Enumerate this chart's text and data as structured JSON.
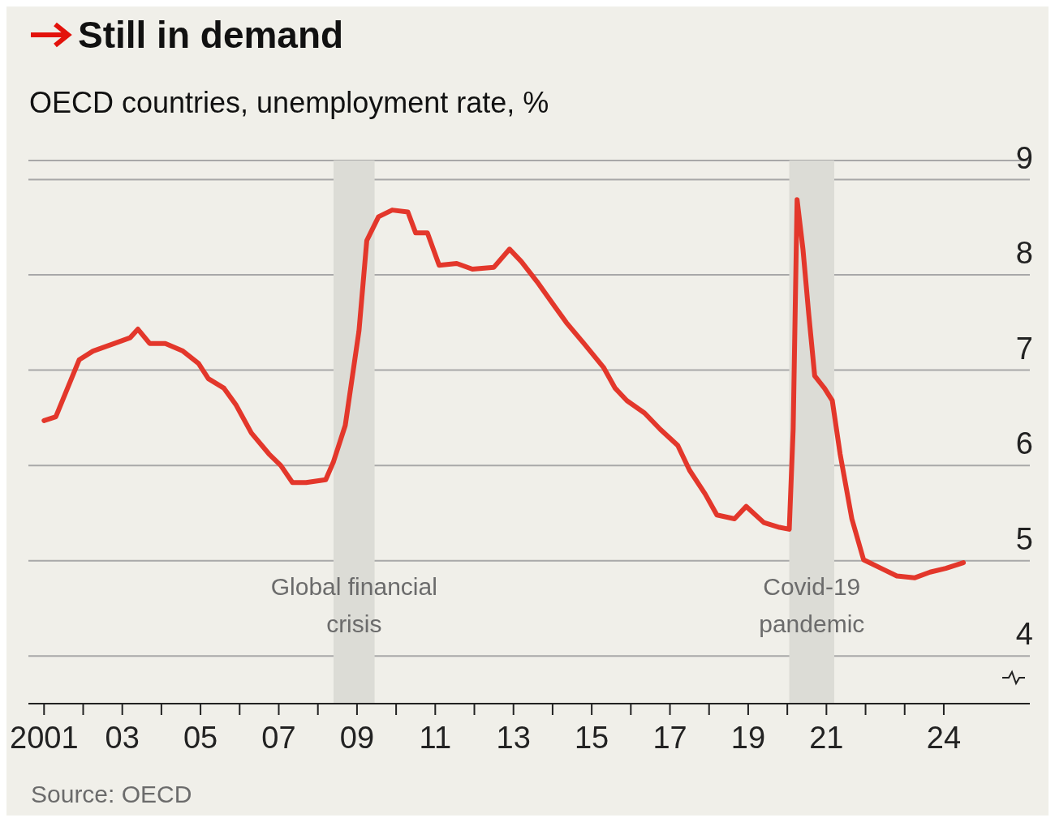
{
  "chart_data": {
    "type": "line",
    "title": "Still in demand",
    "subtitle": "OECD countries, unemployment rate, %",
    "x": [
      2001.0,
      2001.3,
      2001.6,
      2001.9,
      2002.25,
      2002.8,
      2003.2,
      2003.4,
      2003.7,
      2004.1,
      2004.55,
      2004.95,
      2005.2,
      2005.6,
      2005.9,
      2006.3,
      2006.75,
      2007.05,
      2007.35,
      2007.7,
      2008.2,
      2008.4,
      2008.7,
      2009.05,
      2009.25,
      2009.55,
      2009.9,
      2010.3,
      2010.5,
      2010.8,
      2011.1,
      2011.55,
      2011.95,
      2012.5,
      2012.9,
      2013.2,
      2013.6,
      2014.05,
      2014.35,
      2014.8,
      2015.3,
      2015.6,
      2015.9,
      2016.35,
      2016.75,
      2017.2,
      2017.5,
      2017.9,
      2018.2,
      2018.65,
      2018.95,
      2019.4,
      2019.8,
      2020.05,
      2020.15,
      2020.25,
      2020.4,
      2020.55,
      2020.7,
      2020.95,
      2021.15,
      2021.35,
      2021.65,
      2021.95,
      2022.4,
      2022.8,
      2023.25,
      2023.65,
      2024.05,
      2024.5
    ],
    "series": [
      {
        "color": "#e3372b",
        "values": [
          6.47,
          6.51,
          6.81,
          7.11,
          7.2,
          7.28,
          7.34,
          7.43,
          7.28,
          7.28,
          7.2,
          7.07,
          6.91,
          6.81,
          6.64,
          6.34,
          6.12,
          6.0,
          5.82,
          5.82,
          5.85,
          6.04,
          6.42,
          7.41,
          8.36,
          8.61,
          8.68,
          8.66,
          8.44,
          8.44,
          8.1,
          8.12,
          8.06,
          8.08,
          8.27,
          8.14,
          7.93,
          7.67,
          7.5,
          7.28,
          7.03,
          6.81,
          6.68,
          6.55,
          6.38,
          6.21,
          5.95,
          5.7,
          5.48,
          5.44,
          5.57,
          5.4,
          5.35,
          5.33,
          6.38,
          8.79,
          8.27,
          7.58,
          6.94,
          6.81,
          6.68,
          6.12,
          5.44,
          5.01,
          4.92,
          4.84,
          4.82,
          4.88,
          4.92,
          4.98
        ]
      }
    ],
    "xlim": [
      2000.6,
      2026.2
    ],
    "xticks": [
      {
        "value": 2001,
        "label": "2001"
      },
      {
        "value": 2002,
        "label": null
      },
      {
        "value": 2003,
        "label": "03"
      },
      {
        "value": 2004,
        "label": null
      },
      {
        "value": 2005,
        "label": "05"
      },
      {
        "value": 2006,
        "label": null
      },
      {
        "value": 2007,
        "label": "07"
      },
      {
        "value": 2008,
        "label": null
      },
      {
        "value": 2009,
        "label": "09"
      },
      {
        "value": 2010,
        "label": null
      },
      {
        "value": 2011,
        "label": "11"
      },
      {
        "value": 2012,
        "label": null
      },
      {
        "value": 2013,
        "label": "13"
      },
      {
        "value": 2014,
        "label": null
      },
      {
        "value": 2015,
        "label": "15"
      },
      {
        "value": 2016,
        "label": null
      },
      {
        "value": 2017,
        "label": "17"
      },
      {
        "value": 2018,
        "label": null
      },
      {
        "value": 2019,
        "label": "19"
      },
      {
        "value": 2020,
        "label": null
      },
      {
        "value": 2021,
        "label": "21"
      },
      {
        "value": 2022,
        "label": null
      },
      {
        "value": 2023,
        "label": null
      },
      {
        "value": 2024,
        "label": "24"
      }
    ],
    "ylim": [
      3.5,
      9.2
    ],
    "yticks": [
      4,
      5,
      6,
      7,
      8,
      9
    ],
    "grid": "y",
    "bands": [
      {
        "axis": "x",
        "from": 2008.4,
        "to": 2009.45,
        "label": "Global financial\ncrisis",
        "color": "#dcdcd6"
      },
      {
        "axis": "x",
        "from": 2020.05,
        "to": 2021.2,
        "label": "Covid-19\npandemic",
        "color": "#dcdcd6"
      }
    ],
    "annotations": [
      "Source: OECD"
    ]
  }
}
